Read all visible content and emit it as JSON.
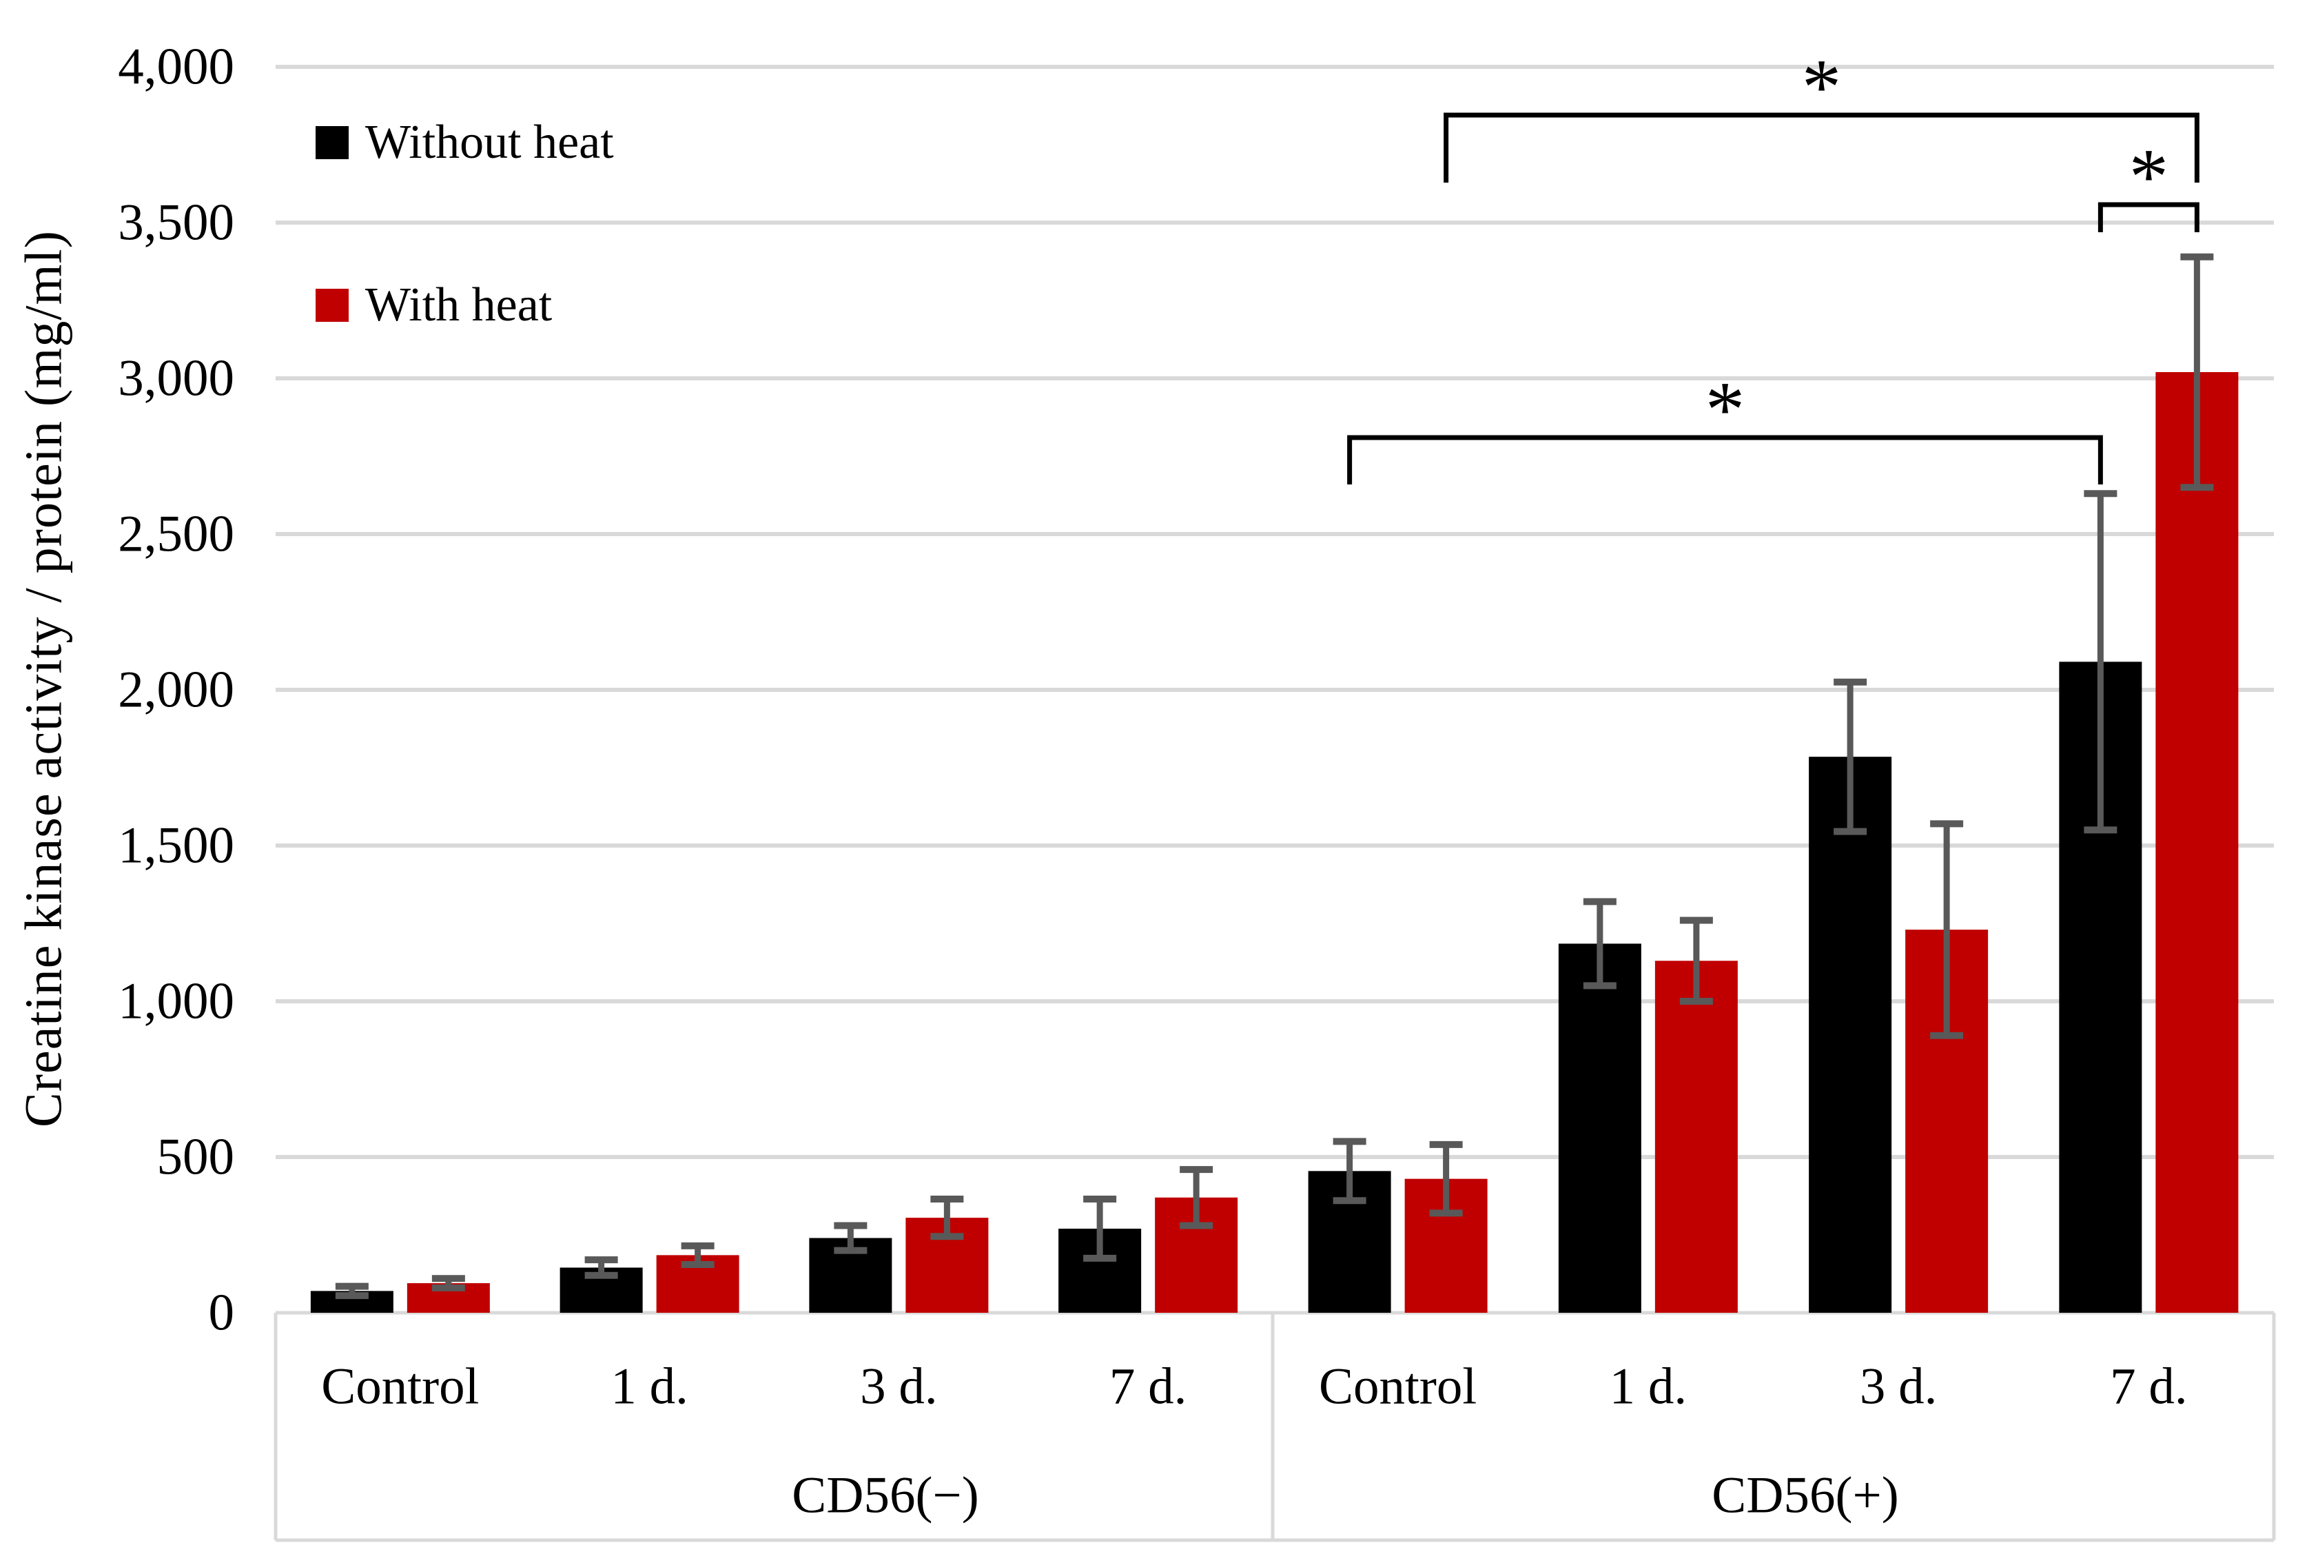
{
  "chart_data": {
    "type": "bar",
    "title": "",
    "ylabel": "Creatine kinase activity / protein (mg/ml)",
    "xlabel": "",
    "ylim": [
      0,
      4000
    ],
    "ytick_interval": 500,
    "ytick_labels": [
      "0",
      "500",
      "1,000",
      "1,500",
      "2,000",
      "2,500",
      "3,000",
      "3,500",
      "4,000"
    ],
    "grid": true,
    "legend_position": "top-left",
    "groups": [
      {
        "label": "CD56(−)",
        "categories": [
          "Control",
          "1 d.",
          "3 d.",
          "7 d."
        ]
      },
      {
        "label": "CD56(+)",
        "categories": [
          "Control",
          "1 d.",
          "3 d.",
          "7 d."
        ]
      }
    ],
    "series": [
      {
        "name": "Without heat",
        "color": "#000000",
        "values": [
          70,
          145,
          240,
          270,
          455,
          1185,
          1785,
          2090
        ],
        "errors": [
          15,
          25,
          40,
          95,
          95,
          135,
          240,
          540
        ]
      },
      {
        "name": "With heat",
        "color": "#C00000",
        "values": [
          95,
          185,
          305,
          370,
          430,
          1130,
          1230,
          3020
        ],
        "errors": [
          15,
          30,
          60,
          90,
          110,
          130,
          340,
          370
        ]
      }
    ],
    "significance_brackets": [
      {
        "label": "*",
        "from_series": 1,
        "from_slot": 4,
        "to_series": 1,
        "to_slot": 7,
        "description": "CD56(+) Control With heat vs CD56(+) 7 d. With heat"
      },
      {
        "label": "*",
        "from_series": 0,
        "from_slot": 7,
        "to_series": 1,
        "to_slot": 7,
        "description": "CD56(+) 7 d. Without heat vs CD56(+) 7 d. With heat"
      },
      {
        "label": "*",
        "from_series": 0,
        "from_slot": 4,
        "to_series": 0,
        "to_slot": 7,
        "description": "CD56(+) Control Without heat vs CD56(+) 7 d. Without heat"
      }
    ],
    "colors": {
      "without_heat": "#000000",
      "with_heat": "#C00000",
      "error_bar": "#595959",
      "gridline": "#D9D9D9",
      "axis_line": "#D9D9D9",
      "bracket": "#000000",
      "text": "#000000"
    }
  }
}
